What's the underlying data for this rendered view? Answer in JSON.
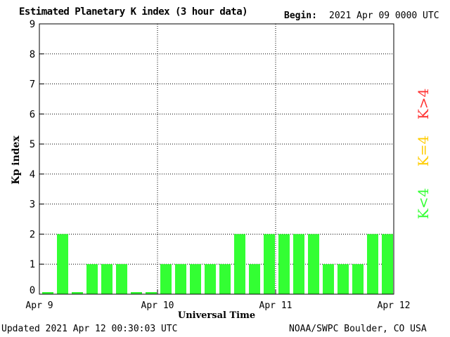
{
  "header": {
    "title": "Estimated Planetary K index (3 hour data)",
    "begin_label": "Begin:",
    "begin_value": "2021 Apr 09 0000 UTC"
  },
  "footer": {
    "updated": "Updated 2021 Apr 12 00:30:03 UTC",
    "source": "NOAA/SWPC Boulder, CO USA"
  },
  "legend": {
    "items": [
      {
        "label": "K>4",
        "color": "#ff3333"
      },
      {
        "label": "K=4",
        "color": "#ffcc00"
      },
      {
        "label": "K<4",
        "color": "#33ff33"
      }
    ]
  },
  "chart_data": {
    "type": "bar",
    "title": "Estimated Planetary K index (3 hour data)",
    "xlabel": "Universal Time",
    "ylabel": "Kp index",
    "ylim": [
      0,
      9
    ],
    "yticks": [
      0,
      1,
      2,
      3,
      4,
      5,
      6,
      7,
      8,
      9
    ],
    "xtick_labels": [
      "Apr 9",
      "Apr 10",
      "Apr 11",
      "Apr 12"
    ],
    "grid": true,
    "bar_color": "#33ff33",
    "series": [
      {
        "values": [
          0,
          2,
          0,
          1,
          1,
          1,
          0,
          0,
          1,
          1,
          1,
          1,
          1,
          2,
          1,
          2,
          2,
          2,
          2,
          1,
          1,
          1,
          2,
          2
        ]
      }
    ]
  }
}
